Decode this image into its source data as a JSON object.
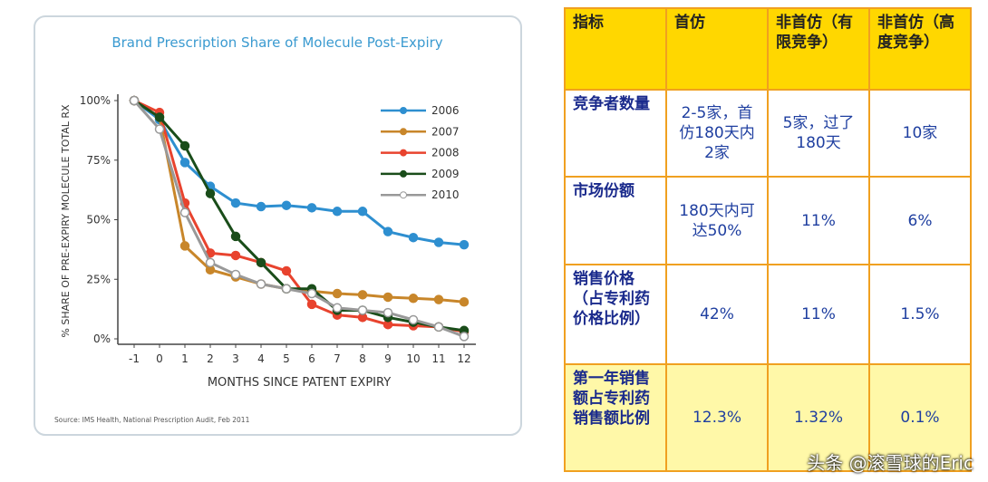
{
  "chart_data": {
    "type": "line",
    "title": "Brand Prescription Share of Molecule Post-Expiry",
    "x_label": "MONTHS SINCE PATENT EXPIRY",
    "y_label": "% SHARE OF PRE-EXPIRY MOLECULE TOTAL RX",
    "source": "Source: IMS Health, National Prescription Audit, Feb 2011",
    "x": [
      -1,
      0,
      1,
      2,
      3,
      4,
      5,
      6,
      7,
      8,
      9,
      10,
      11,
      12
    ],
    "xlim": [
      -1,
      12
    ],
    "xticks": [
      -1,
      0,
      1,
      2,
      3,
      4,
      5,
      6,
      7,
      8,
      9,
      10,
      11,
      12
    ],
    "ylim": [
      0,
      100
    ],
    "yticks": [
      {
        "value": 0,
        "label": "0%"
      },
      {
        "value": 25,
        "label": "25%"
      },
      {
        "value": 50,
        "label": "50%"
      },
      {
        "value": 75,
        "label": "75%"
      },
      {
        "value": 100,
        "label": "100%"
      }
    ],
    "series": [
      {
        "name": "2006",
        "color": "#2e8fd0",
        "values": [
          100,
          92,
          74,
          64,
          57,
          55.5,
          56,
          55,
          53.5,
          53.5,
          45,
          42.5,
          40.5,
          39.5
        ]
      },
      {
        "name": "2007",
        "color": "#c8862a",
        "values": [
          100,
          93,
          39,
          29,
          26,
          23,
          21,
          20,
          19,
          18.5,
          17.5,
          17,
          16.5,
          15.5
        ]
      },
      {
        "name": "2008",
        "color": "#e8432e",
        "values": [
          100,
          95,
          57,
          36,
          35,
          32,
          28.5,
          14.5,
          10,
          9,
          6,
          5.5,
          5,
          3
        ]
      },
      {
        "name": "2009",
        "color": "#1a4d1a",
        "values": [
          100,
          93,
          81,
          61,
          43,
          32,
          21,
          21,
          12,
          12,
          9,
          7,
          5,
          3.5
        ]
      },
      {
        "name": "2010",
        "color": "#999999",
        "values": [
          100,
          88,
          53,
          32,
          27,
          23,
          21,
          19,
          13,
          12,
          11,
          8,
          5,
          1
        ]
      }
    ]
  },
  "table": {
    "header": [
      "指标",
      "首仿",
      "非首仿（有限竞争）",
      "非首仿（高度竞争）"
    ],
    "rows": [
      [
        "竞争者数量",
        "2-5家，首仿180天内2家",
        "5家，过了180天",
        "10家"
      ],
      [
        "市场份额",
        "180天内可达50%",
        "11%",
        "6%"
      ],
      [
        "销售价格（占专利药价格比例）",
        "42%",
        "11%",
        "1.5%"
      ],
      [
        "第一年销售额占专利药销售额比例",
        "12.3%",
        "1.32%",
        "0.1%"
      ]
    ]
  },
  "watermark": "头条 @滚雪球的Eric"
}
